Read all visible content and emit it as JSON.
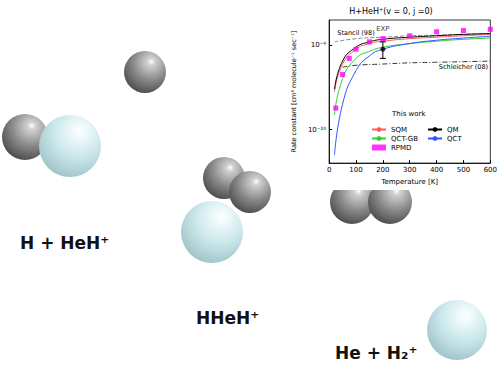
{
  "diagram": {
    "labels": [
      "H + HeH⁺",
      "HHeH⁺",
      "He + H₂⁺"
    ]
  },
  "chart_data": {
    "type": "line",
    "title": "H+HeH⁺(v = 0, j =0)",
    "x_label": "Temperature [K]",
    "y_label": "Rate constant [cm³ molecule⁻¹ sec⁻¹]",
    "log": "y",
    "grid": false,
    "legend": "lower right",
    "legend_title": "This work",
    "xlim": [
      0,
      600
    ],
    "xticks": [
      0,
      100,
      200,
      300,
      400,
      500,
      600
    ],
    "ylim": [
      4e-11,
      2e-09
    ],
    "yticks": [
      {
        "value": 1e-10,
        "label": "10⁻¹⁰"
      },
      {
        "value": 1e-09,
        "label": "10⁻⁹"
      }
    ],
    "series": [
      {
        "name": "SQM",
        "color": "#ff5a5a",
        "type": "line",
        "marker": "none",
        "line_style": "solid",
        "x": [
          20,
          50,
          100,
          150,
          200,
          300,
          400,
          500,
          600
        ],
        "values": [
          2.8e-10,
          6e-10,
          9e-10,
          1.05e-09,
          1.12e-09,
          1.2e-09,
          1.25e-09,
          1.3e-09,
          1.35e-09
        ]
      },
      {
        "name": "QCT-GB",
        "color": "#33cc33",
        "type": "line",
        "marker": "none",
        "line_style": "solid",
        "x": [
          20,
          50,
          100,
          150,
          200,
          300,
          400,
          500,
          600
        ],
        "values": [
          1.5e-10,
          4e-10,
          7e-10,
          8.5e-10,
          9.5e-10,
          1.05e-09,
          1.12e-09,
          1.18e-09,
          1.22e-09
        ]
      },
      {
        "name": "RPMD",
        "color": "#ff00ff",
        "type": "scatter",
        "marker": "square",
        "x": [
          25,
          50,
          75,
          100,
          150,
          200,
          300,
          400,
          500,
          600
        ],
        "values": [
          1.8e-10,
          4.5e-10,
          7e-10,
          9e-10,
          1.1e-09,
          1.2e-09,
          1.3e-09,
          1.45e-09,
          1.5e-09,
          1.55e-09
        ]
      },
      {
        "name": "QM",
        "color": "#000000",
        "type": "line",
        "marker": "none",
        "line_style": "solid",
        "x": [
          20,
          50,
          100,
          150,
          200,
          300,
          400,
          500,
          600
        ],
        "values": [
          3e-10,
          6.5e-10,
          9.5e-10,
          1.1e-09,
          1.18e-09,
          1.25e-09,
          1.3e-09,
          1.35e-09,
          1.38e-09
        ]
      },
      {
        "name": "QCT",
        "color": "#3355ff",
        "type": "line",
        "marker": "none",
        "line_style": "solid",
        "x": [
          20,
          50,
          100,
          150,
          200,
          300,
          400,
          500,
          600
        ],
        "values": [
          5e-11,
          2e-10,
          5e-10,
          7.5e-10,
          9e-10,
          1.05e-09,
          1.15e-09,
          1.22e-09,
          1.28e-09
        ]
      }
    ],
    "references": [
      {
        "name": "Stancil (98)",
        "color": "#888888",
        "line_style": "dashed",
        "x": [
          20,
          100,
          200,
          300,
          400,
          500,
          600
        ],
        "values": [
          1.1e-09,
          1.2e-09,
          1.25e-09,
          1.3e-09,
          1.32e-09,
          1.35e-09,
          1.37e-09
        ]
      },
      {
        "name": "Schleicher (08)",
        "color": "#333333",
        "line_style": "dashdot",
        "x": [
          50,
          100,
          200,
          300,
          400,
          500,
          600
        ],
        "values": [
          5.5e-10,
          5.8e-10,
          6e-10,
          6.2e-10,
          6.3e-10,
          6.4e-10,
          6.5e-10
        ]
      }
    ],
    "experiment": {
      "name": "EXP",
      "color": "#000000",
      "marker": "circle",
      "x": 200,
      "value": 9e-10,
      "error": [
        7e-10,
        1.1e-09
      ]
    }
  }
}
